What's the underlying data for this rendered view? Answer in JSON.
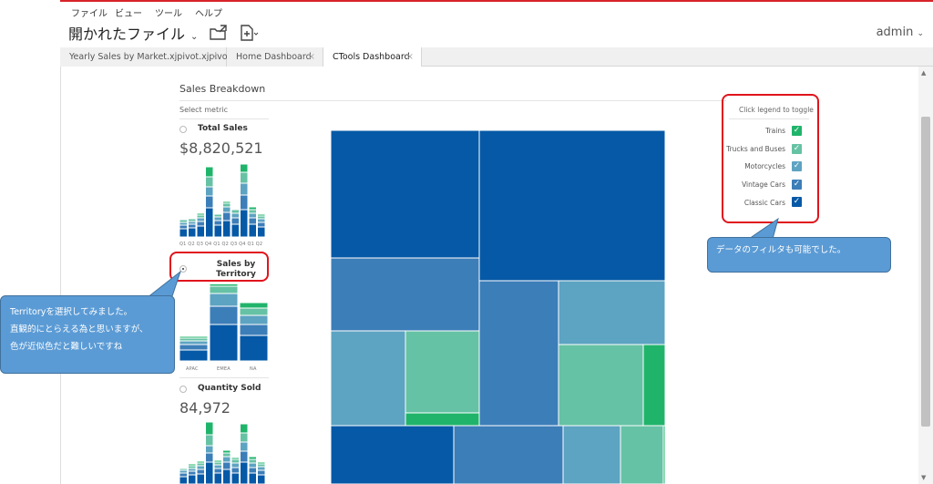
{
  "menu": [
    "ファイル",
    "ビュー",
    "ツール",
    "ヘルプ"
  ],
  "header": {
    "title": "開かれたファイル",
    "user": "admin"
  },
  "tabs": [
    {
      "label": "Yearly Sales by Market.xjpivot.xjpivot",
      "active": false
    },
    {
      "label": "Home Dashboard",
      "active": false
    },
    {
      "label": "CTools Dashboard",
      "active": true
    }
  ],
  "panel": {
    "title": "Sales Breakdown",
    "select_metric": "Select metric",
    "metrics": [
      {
        "label": "Total Sales",
        "value": "$8,820,521",
        "selected": false,
        "ticks": "Q1 Q2 Q3 Q4 Q1 Q2 Q3 Q4 Q1 Q2"
      },
      {
        "label": "Sales by Territory",
        "label_line1": "Sales by",
        "label_line2": "Territory",
        "selected": true,
        "ticks": [
          "APAC",
          "EMEA",
          "NA"
        ]
      },
      {
        "label": "Quantity Sold",
        "value": "84,972",
        "selected": false
      }
    ]
  },
  "legend": {
    "hint": "Click legend to toggle",
    "items": [
      {
        "label": "Trains",
        "color": "#20b46b",
        "checked": true
      },
      {
        "label": "Trucks and Buses",
        "color": "#66c2a4",
        "checked": true
      },
      {
        "label": "Motorcycles",
        "color": "#5da3c2",
        "checked": true
      },
      {
        "label": "Vintage Cars",
        "color": "#3c7eb8",
        "checked": true
      },
      {
        "label": "Classic Cars",
        "color": "#0659a6",
        "checked": true
      }
    ]
  },
  "callouts": {
    "left_line1": "Territoryを選択してみました。",
    "left_line2": "直観的にとらえる為と思いますが、",
    "left_line3": "色が近似色だと難しいですね",
    "right": "データのフィルタも可能でした。"
  },
  "colors": {
    "classic": "#0659a6",
    "vintage": "#3c7eb8",
    "moto": "#5da3c2",
    "trucks": "#66c2a4",
    "trains": "#20b46b",
    "accent_red": "#e0141c"
  }
}
